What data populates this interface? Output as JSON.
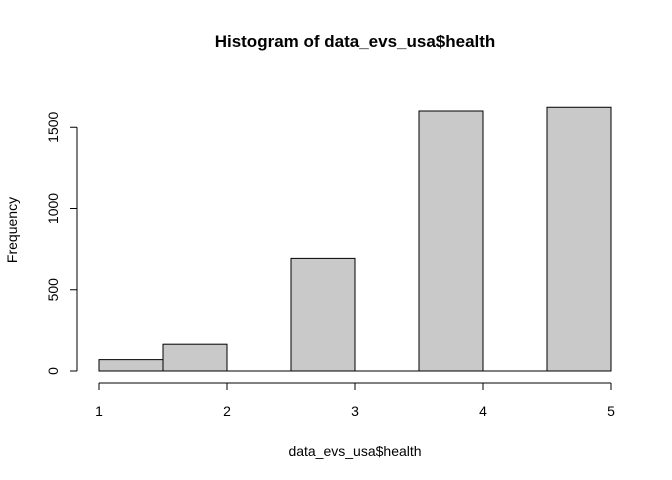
{
  "chart_data": {
    "type": "bar",
    "title": "Histogram of data_evs_usa$health",
    "xlabel": "data_evs_usa$health",
    "ylabel": "Frequency",
    "bins": [
      {
        "x0": 1.0,
        "x1": 1.5,
        "count": 70
      },
      {
        "x0": 1.5,
        "x1": 2.0,
        "count": 165
      },
      {
        "x0": 2.0,
        "x1": 2.5,
        "count": 0
      },
      {
        "x0": 2.5,
        "x1": 3.0,
        "count": 693
      },
      {
        "x0": 3.0,
        "x1": 3.5,
        "count": 0
      },
      {
        "x0": 3.5,
        "x1": 4.0,
        "count": 1600
      },
      {
        "x0": 4.0,
        "x1": 4.5,
        "count": 0
      },
      {
        "x0": 4.5,
        "x1": 5.0,
        "count": 1623
      }
    ],
    "xlim": [
      1,
      5
    ],
    "ylim": [
      0,
      1600
    ],
    "x_ticks": [
      "1",
      "2",
      "3",
      "4",
      "5"
    ],
    "y_ticks": [
      "0",
      "500",
      "1000",
      "1500"
    ],
    "grid": false,
    "bar_fill": "#c9c9c9",
    "bar_stroke": "#000000"
  }
}
